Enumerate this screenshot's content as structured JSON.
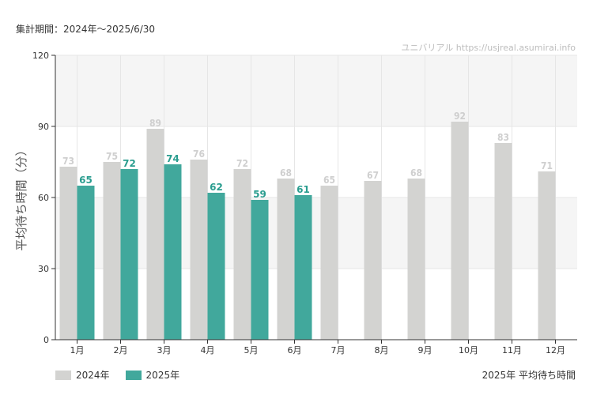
{
  "header": {
    "period": "集計期間：2024年～2025/6/30",
    "watermark": "ユニバリアル  https://usjreal.asumirai.info"
  },
  "footer": {
    "title": "2025年 平均待ち時間"
  },
  "colors": {
    "series_2024": "#d3d3d1",
    "series_2025": "#41a89c",
    "label_2024": "#cfcfcf",
    "label_2025": "#2a9d8f",
    "band": "#f5f5f5",
    "grid": "#e6e6e6",
    "axis": "#333333"
  },
  "chart_data": {
    "type": "bar",
    "title": "",
    "ylabel": "平均待ち時間（分）",
    "xlabel": "",
    "ylim": [
      0,
      120
    ],
    "yticks": [
      0,
      30,
      60,
      90,
      120
    ],
    "categories": [
      "1月",
      "2月",
      "3月",
      "4月",
      "5月",
      "6月",
      "7月",
      "8月",
      "9月",
      "10月",
      "11月",
      "12月"
    ],
    "series": [
      {
        "name": "2024年",
        "values": [
          73,
          75,
          89,
          76,
          72,
          68,
          65,
          67,
          68,
          92,
          83,
          71
        ]
      },
      {
        "name": "2025年",
        "values": [
          65,
          72,
          74,
          62,
          59,
          61,
          null,
          null,
          null,
          null,
          null,
          null
        ]
      }
    ],
    "legend": "bottom-left"
  }
}
